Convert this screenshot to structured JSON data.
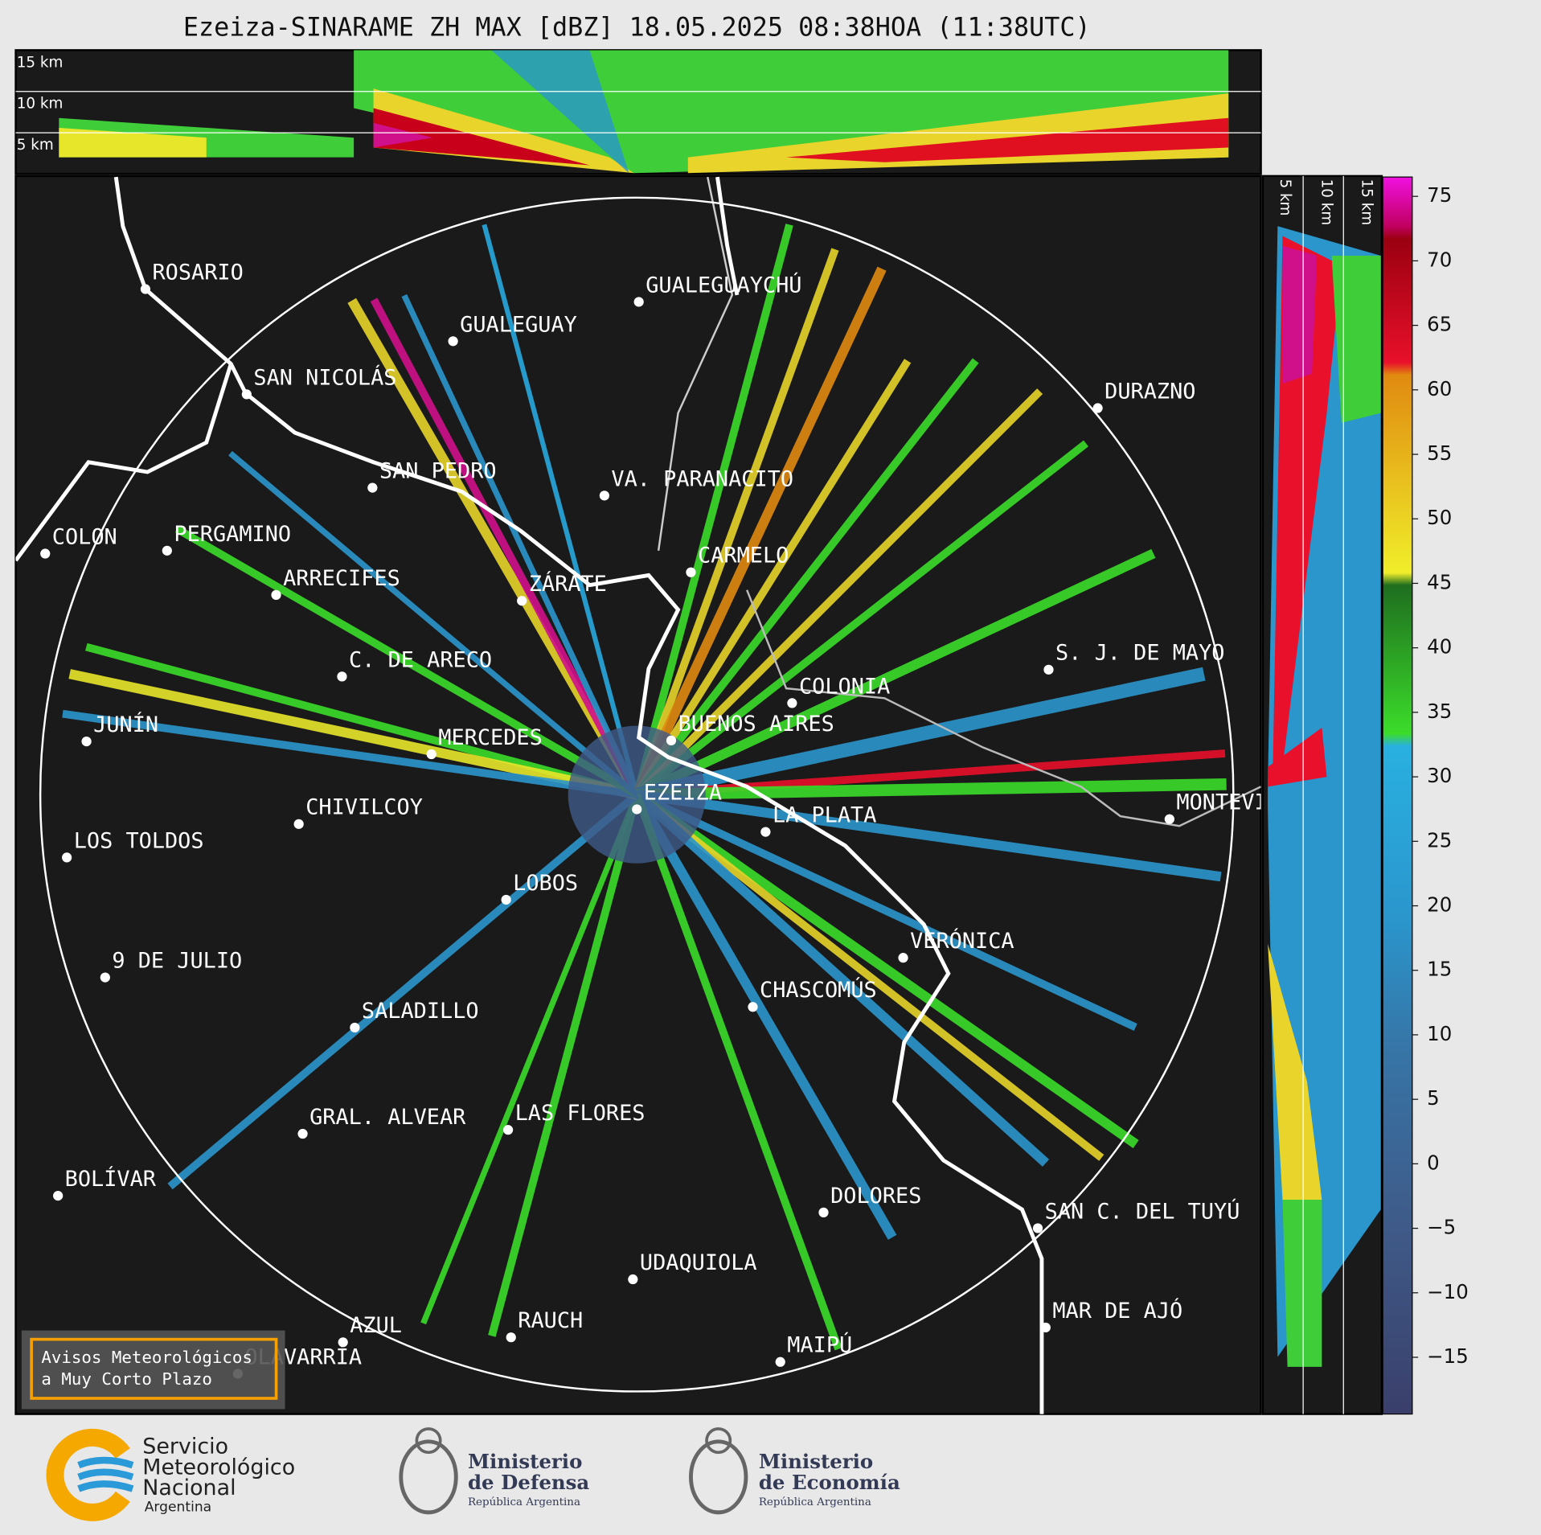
{
  "title": "Ezeiza-SINARAME ZH MAX [dBZ] 18.05.2025 08:38HOA (11:38UTC)",
  "height_labels_top": [
    "15 km",
    "10 km",
    "5 km"
  ],
  "height_labels_side": [
    "5 km",
    "10 km",
    "15 km"
  ],
  "cities": [
    "ROSARIO",
    "GUALEGUAYCHÚ",
    "GUALEGUAY",
    "SAN NICOLÁS",
    "DURAZNO",
    "SAN PEDRO",
    "VA. PARANACITO",
    "COLON",
    "PERGAMINO",
    "CARMELO",
    "ARRECIFES",
    "ZÁRATE",
    "S. J. DE MAYO",
    "C. DE ARECO",
    "COLONIA",
    "BUENOS AIRES",
    "JUNÍN",
    "MERCEDES",
    "EZEIZA",
    "MONTEVIDEO",
    "LA PLATA",
    "CHIVILCOY",
    "LOS TOLDOS",
    "LOBOS",
    "VERÓNICA",
    "9 DE JULIO",
    "CHASCOMÚS",
    "SALADILLO",
    "GRAL. ALVEAR",
    "LAS FLORES",
    "BOLÍVAR",
    "DOLORES",
    "SAN C. DEL TUYÚ",
    "UDAQUIOLA",
    "MAR DE AJÓ",
    "RAUCH",
    "AZUL",
    "OLAVARRÍA",
    "MAIPÚ"
  ],
  "colorbar": {
    "lim": [
      -19.4,
      76.5
    ],
    "ticks": [
      75,
      70,
      65,
      60,
      55,
      50,
      45,
      40,
      35,
      30,
      25,
      20,
      15,
      10,
      5,
      0,
      -5,
      -10,
      -15
    ]
  },
  "warning_box": [
    "Avisos Meteorológicos",
    "a Muy Corto Plazo"
  ],
  "logos": {
    "smn": [
      "Servicio",
      "Meteorológico",
      "Nacional",
      "Argentina"
    ],
    "defensa": [
      "Ministerio",
      "de Defensa",
      "República Argentina"
    ],
    "economia": [
      "Ministerio",
      "de Economía",
      "República Argentina"
    ]
  }
}
